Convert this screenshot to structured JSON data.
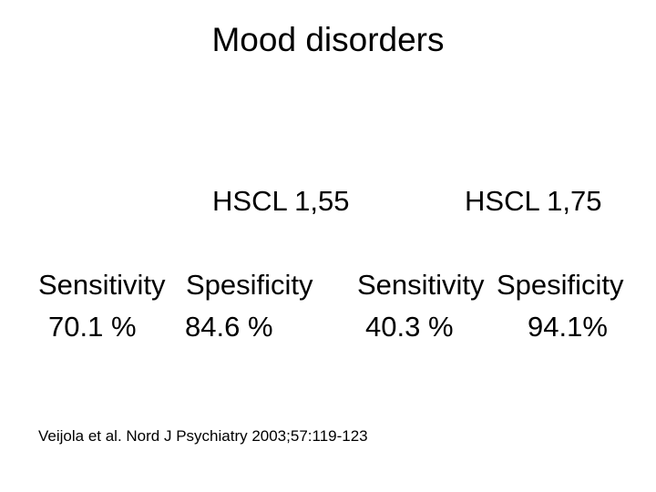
{
  "slide": {
    "title": "Mood disorders",
    "groups": [
      {
        "header": "HSCL 1,55",
        "sensitivity_label": "Sensitivity",
        "specificity_label": "Spesificity",
        "sensitivity_value": "70.1 %",
        "specificity_value": "84.6 %"
      },
      {
        "header": "HSCL 1,75",
        "sensitivity_label": "Sensitivity",
        "specificity_label": "Spesificity",
        "sensitivity_value": "40.3 %",
        "specificity_value": "94.1%"
      }
    ],
    "citation": "Veijola et al. Nord J Psychiatry 2003;57:119-123"
  }
}
